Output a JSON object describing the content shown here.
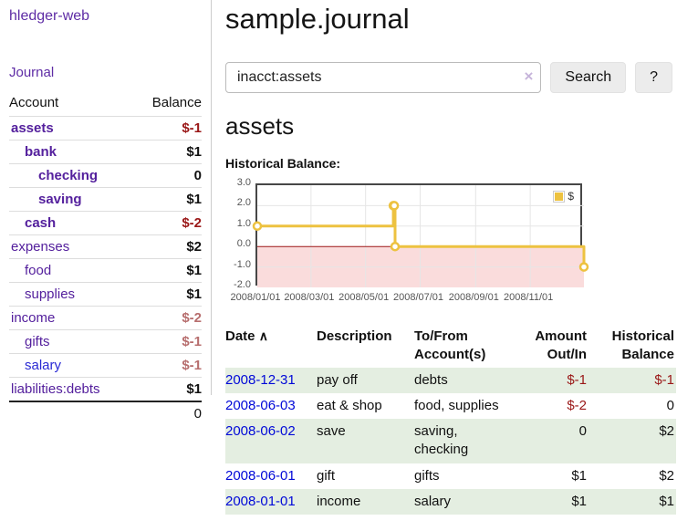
{
  "app": {
    "title": "hledger-web"
  },
  "sidebar": {
    "journal_label": "Journal",
    "header": {
      "account": "Account",
      "balance": "Balance"
    },
    "accounts": [
      {
        "name": "assets",
        "depth": 0,
        "bold": true,
        "link_color": "purple",
        "balance": "$-1",
        "balance_style": "neg"
      },
      {
        "name": "bank",
        "depth": 1,
        "bold": true,
        "link_color": "purple",
        "balance": "$1",
        "balance_style": "plain"
      },
      {
        "name": "checking",
        "depth": 2,
        "bold": true,
        "link_color": "purple",
        "balance": "0",
        "balance_style": "plain"
      },
      {
        "name": "saving",
        "depth": 2,
        "bold": true,
        "link_color": "purple",
        "balance": "$1",
        "balance_style": "plain"
      },
      {
        "name": "cash",
        "depth": 1,
        "bold": true,
        "link_color": "purple",
        "balance": "$-2",
        "balance_style": "neg"
      },
      {
        "name": "expenses",
        "depth": 0,
        "bold": false,
        "link_color": "purple",
        "balance": "$2",
        "balance_style": "plain"
      },
      {
        "name": "food",
        "depth": 1,
        "bold": false,
        "link_color": "purple",
        "balance": "$1",
        "balance_style": "plain"
      },
      {
        "name": "supplies",
        "depth": 1,
        "bold": false,
        "link_color": "purple",
        "balance": "$1",
        "balance_style": "plain"
      },
      {
        "name": "income",
        "depth": 0,
        "bold": false,
        "link_color": "purple",
        "balance": "$-2",
        "balance_style": "negsoft"
      },
      {
        "name": "gifts",
        "depth": 1,
        "bold": false,
        "link_color": "purple",
        "balance": "$-1",
        "balance_style": "negsoft"
      },
      {
        "name": "salary",
        "depth": 1,
        "bold": false,
        "link_color": "blue",
        "balance": "$-1",
        "balance_style": "negsoft"
      },
      {
        "name": "liabilities:debts",
        "depth": 0,
        "bold": false,
        "link_color": "purple",
        "balance": "$1",
        "balance_style": "plain"
      }
    ],
    "total": "0"
  },
  "header": {
    "title": "sample.journal"
  },
  "search": {
    "value": "inacct:assets",
    "clear_icon": "×",
    "button_label": "Search",
    "help_label": "?"
  },
  "account_page": {
    "title": "assets",
    "chart_heading": "Historical Balance:"
  },
  "chart_data": {
    "type": "line",
    "step": true,
    "title": "Historical Balance",
    "series": [
      {
        "name": "$",
        "color": "#edc240",
        "points": [
          [
            "2008-01-01",
            1
          ],
          [
            "2008-06-01",
            2
          ],
          [
            "2008-06-02",
            2
          ],
          [
            "2008-06-03",
            0
          ],
          [
            "2008-12-31",
            -1
          ]
        ]
      }
    ],
    "xlim": [
      "2008-01-01",
      "2008-12-31"
    ],
    "ylim": [
      -2,
      3
    ],
    "x_ticks": [
      {
        "label": "2008/01/01",
        "date": "2008-01-01"
      },
      {
        "label": "2008/03/01",
        "date": "2008-03-01"
      },
      {
        "label": "2008/05/01",
        "date": "2008-05-01"
      },
      {
        "label": "2008/07/01",
        "date": "2008-07-01"
      },
      {
        "label": "2008/09/01",
        "date": "2008-09-01"
      },
      {
        "label": "2008/11/01",
        "date": "2008-11-01"
      }
    ],
    "y_ticks": [
      {
        "label": "3.0",
        "value": 3
      },
      {
        "label": "2.0",
        "value": 2
      },
      {
        "label": "1.0",
        "value": 1
      },
      {
        "label": "0.0",
        "value": 0
      },
      {
        "label": "-1.0",
        "value": -1
      },
      {
        "label": "-2.0",
        "value": -2
      }
    ],
    "grid": true,
    "negative_region_color": "#fadcdc",
    "zero_line_color": "#9d1717",
    "grid_color": "#e6e6e6",
    "legend": {
      "label": "$",
      "position": "top-right"
    }
  },
  "register": {
    "columns": {
      "date": "Date",
      "description": "Description",
      "accounts": "To/From Account(s)",
      "amount": "Amount Out/In",
      "balance": "Historical Balance"
    },
    "date_sort_icon": "∧",
    "rows": [
      {
        "date": "2008-12-31",
        "description": "pay off",
        "accounts": "debts",
        "amount": "$-1",
        "amount_style": "neg",
        "balance": "$-1",
        "balance_style": "neg"
      },
      {
        "date": "2008-06-03",
        "description": "eat & shop",
        "accounts": "food, supplies",
        "amount": "$-2",
        "amount_style": "neg",
        "balance": "0",
        "balance_style": "plain"
      },
      {
        "date": "2008-06-02",
        "description": "save",
        "accounts": "saving, checking",
        "amount": "0",
        "amount_style": "plain",
        "balance": "$2",
        "balance_style": "plain"
      },
      {
        "date": "2008-06-01",
        "description": "gift",
        "accounts": "gifts",
        "amount": "$1",
        "amount_style": "plain",
        "balance": "$2",
        "balance_style": "plain"
      },
      {
        "date": "2008-01-01",
        "description": "income",
        "accounts": "salary",
        "amount": "$1",
        "amount_style": "plain",
        "balance": "$1",
        "balance_style": "plain"
      }
    ]
  }
}
